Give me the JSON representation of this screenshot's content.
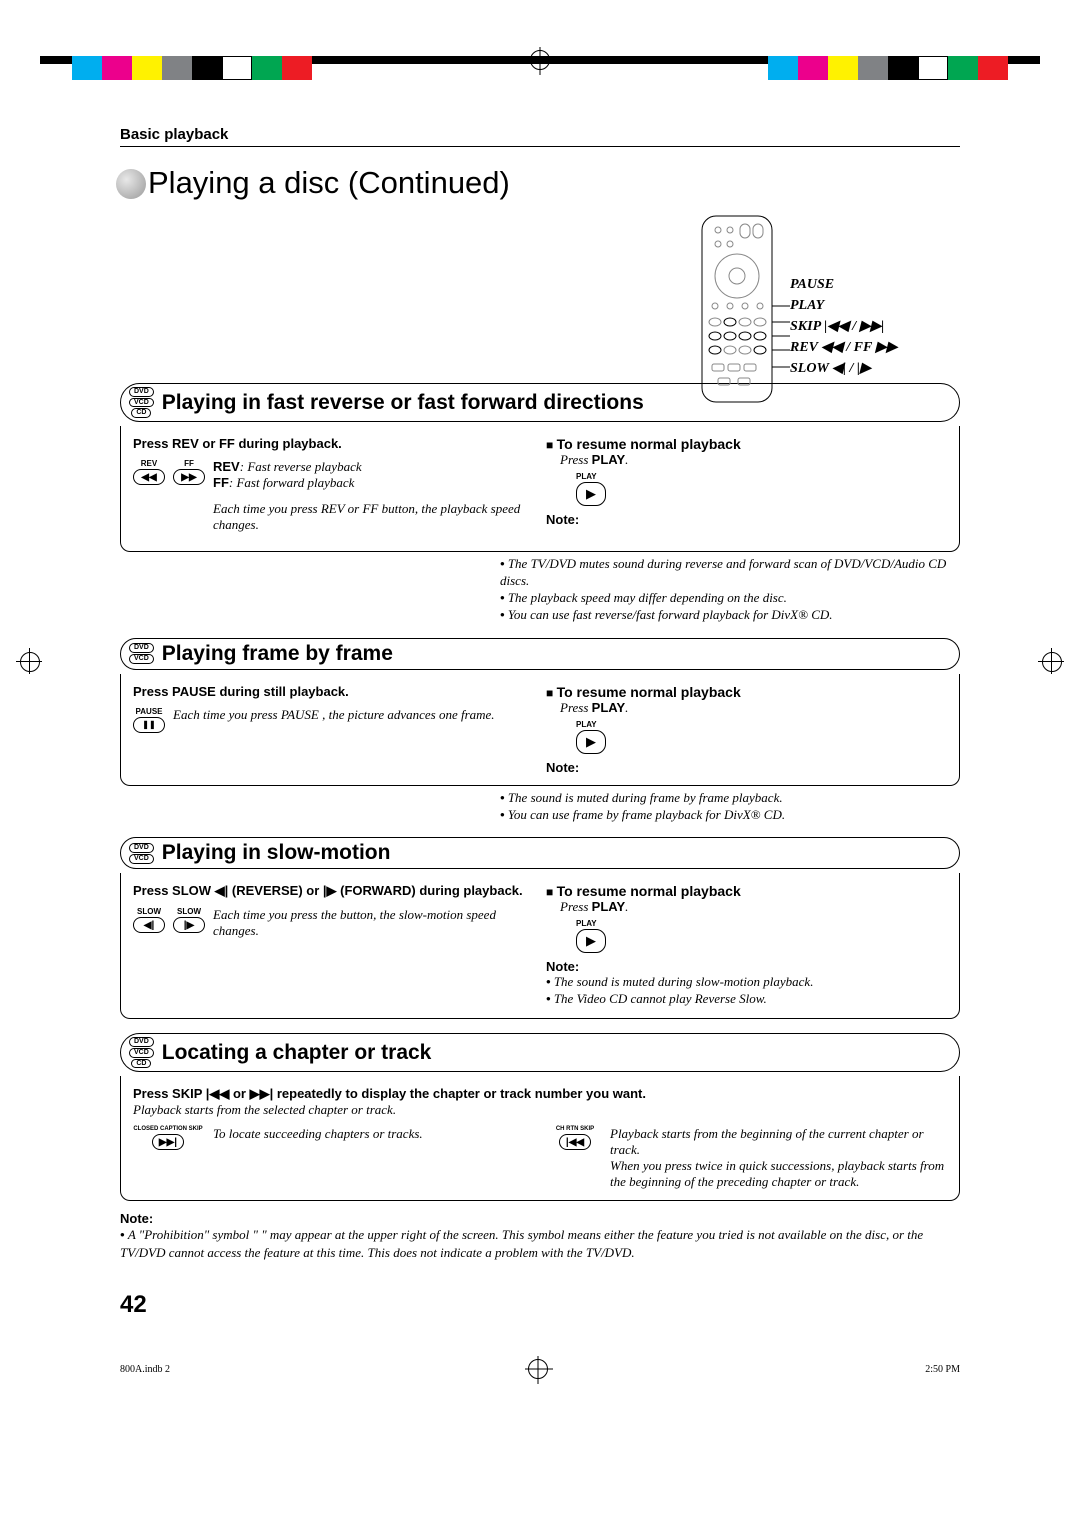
{
  "color_blocks": [
    "#00aeef",
    "#ec008c",
    "#fff200",
    "#808285",
    "#000000",
    "#ffffff",
    "#00a651",
    "#ed1c24"
  ],
  "header": {
    "section_label": "Basic playback",
    "title": "Playing a disc (Continued)"
  },
  "remote": {
    "labels": [
      "PAUSE",
      "PLAY",
      "SKIP  |◀◀ / ▶▶|",
      "REV ◀◀ / FF ▶▶",
      "SLOW ◀| / |▶"
    ]
  },
  "sections": {
    "fastscan": {
      "badges": [
        "DVD",
        "VCD",
        "CD"
      ],
      "title": "Playing in fast reverse or fast forward directions",
      "left": {
        "instr": "Press REV or FF during playback.",
        "btn_labels": [
          "REV",
          "FF"
        ],
        "btn_glyphs": [
          "◀◀",
          "▶▶"
        ],
        "lines": [
          {
            "b": "REV",
            "t": ": Fast reverse playback"
          },
          {
            "b": "FF",
            "t": ":   Fast forward playback"
          }
        ],
        "para": "Each time you press REV or FF button, the playback speed changes."
      },
      "right": {
        "resume_h": "To resume normal playback",
        "resume_t": "Press PLAY.",
        "play_label": "PLAY",
        "note_h": "Note:",
        "notes": [
          "The TV/DVD mutes sound during reverse and forward scan of DVD/VCD/Audio CD discs.",
          "The playback speed may differ depending on the disc.",
          "You can use fast reverse/fast forward playback for DivX® CD."
        ]
      }
    },
    "frame": {
      "badges": [
        "DVD",
        "VCD"
      ],
      "title": "Playing frame by frame",
      "left": {
        "instr": "Press PAUSE during still playback.",
        "btn_label": "PAUSE",
        "btn_glyph": "❚❚",
        "para": "Each time you press PAUSE , the picture advances one frame."
      },
      "right": {
        "resume_h": "To resume normal playback",
        "resume_t": "Press PLAY.",
        "play_label": "PLAY",
        "note_h": "Note:",
        "notes": [
          "The sound is muted during frame by frame playback.",
          "You can use frame by frame playback for DivX® CD."
        ]
      }
    },
    "slow": {
      "badges": [
        "DVD",
        "VCD"
      ],
      "title": "Playing in slow-motion",
      "left": {
        "instr": "Press SLOW ◀| (REVERSE) or |▶ (FORWARD) during playback.",
        "btn_labels": [
          "SLOW",
          "SLOW"
        ],
        "btn_glyphs": [
          "◀|",
          "|▶"
        ],
        "para": "Each time you press the button, the slow-motion speed changes."
      },
      "right": {
        "resume_h": "To resume normal playback",
        "resume_t": "Press PLAY.",
        "play_label": "PLAY",
        "note_h": "Note:",
        "notes": [
          "The sound is muted during slow-motion playback.",
          "The Video CD cannot play Reverse Slow."
        ]
      }
    },
    "locate": {
      "badges": [
        "DVD",
        "VCD",
        "CD"
      ],
      "title": "Locating a chapter or track",
      "instr": "Press SKIP |◀◀ or ▶▶| repeatedly to display the chapter or track number you want.",
      "sub": "Playback starts from the selected chapter or track.",
      "fwd": {
        "btn_label": "CLOSED CAPTION SKIP",
        "glyph": "▶▶|",
        "text": "To locate succeeding chapters or tracks."
      },
      "rev": {
        "btn_label": "CH RTN SKIP",
        "glyph": "|◀◀",
        "text1": "Playback starts from the beginning of the current chapter or track.",
        "text2": "When you press twice in quick successions, playback starts from the beginning of the preceding chapter or track."
      }
    }
  },
  "outer_note": {
    "h": "Note:",
    "text": "A \"Prohibition\" symbol \"  \" may appear at the upper right of the screen. This symbol means either the feature you tried is not available on the disc, or the TV/DVD cannot access the feature at this time. This does not indicate a problem with the TV/DVD."
  },
  "page_num": "42",
  "footer": {
    "left": "800A.indb   2",
    "right": "2:50 PM"
  }
}
